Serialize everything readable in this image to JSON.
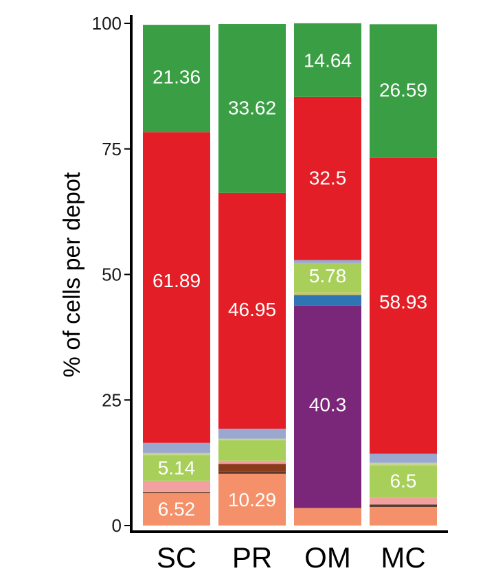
{
  "chart_data": {
    "type": "bar",
    "stacked": true,
    "title": "",
    "xlabel": "",
    "ylabel": "% of cells per depot",
    "ylim": [
      0,
      100
    ],
    "yticks": [
      0,
      25,
      50,
      75,
      100
    ],
    "grid": false,
    "legend": "none",
    "categories": [
      "SC",
      "PR",
      "OM",
      "MC"
    ],
    "series": [
      {
        "color": "#F4906A",
        "values": [
          6.52,
          10.29,
          3.5,
          3.7
        ]
      },
      {
        "color": "#5A3A2A",
        "values": [
          0.2,
          0.4,
          0.0,
          0.5
        ]
      },
      {
        "color": "#8B3A1E",
        "values": [
          0.0,
          1.6,
          0.0,
          0.0
        ]
      },
      {
        "color": "#F2A0A0",
        "values": [
          2.2,
          0.6,
          0.0,
          1.3
        ]
      },
      {
        "color": "#A8CF5A",
        "values": [
          5.14,
          4.1,
          0.0,
          6.5
        ]
      },
      {
        "color": "#C7D48E",
        "values": [
          0.4,
          0.3,
          0.0,
          0.5
        ]
      },
      {
        "color": "#7B2779",
        "values": [
          0.0,
          0.0,
          40.3,
          0.0
        ]
      },
      {
        "color": "#2F74B5",
        "values": [
          0.0,
          0.0,
          2.1,
          0.0
        ]
      },
      {
        "color": "#C8C86A",
        "values": [
          0.0,
          0.0,
          0.6,
          0.0
        ]
      },
      {
        "color": "#A8CF5A",
        "values": [
          0.0,
          0.0,
          5.78,
          0.0
        ]
      },
      {
        "color": "#9AA8D0",
        "values": [
          2.0,
          2.0,
          0.6,
          1.8
        ]
      },
      {
        "color": "#E41E26",
        "values": [
          61.89,
          46.95,
          32.5,
          58.93
        ]
      },
      {
        "color": "#3A9E44",
        "values": [
          21.36,
          33.62,
          14.64,
          26.59
        ]
      }
    ],
    "data_labels": [
      {
        "text": "6.52",
        "category": 0,
        "y": 3.26
      },
      {
        "text": "5.14",
        "category": 0,
        "y": 11.5
      },
      {
        "text": "61.89",
        "category": 0,
        "y": 48.8
      },
      {
        "text": "21.36",
        "category": 0,
        "y": 89.3
      },
      {
        "text": "10.29",
        "category": 1,
        "y": 5.1
      },
      {
        "text": "46.95",
        "category": 1,
        "y": 43.0
      },
      {
        "text": "33.62",
        "category": 1,
        "y": 83.2
      },
      {
        "text": "40.3",
        "category": 2,
        "y": 24.1
      },
      {
        "text": "5.78",
        "category": 2,
        "y": 49.7
      },
      {
        "text": "32.5",
        "category": 2,
        "y": 69.2
      },
      {
        "text": "14.64",
        "category": 2,
        "y": 92.6
      },
      {
        "text": "6.5",
        "category": 3,
        "y": 8.9
      },
      {
        "text": "58.93",
        "category": 3,
        "y": 44.5
      },
      {
        "text": "26.59",
        "category": 3,
        "y": 86.7
      }
    ]
  }
}
